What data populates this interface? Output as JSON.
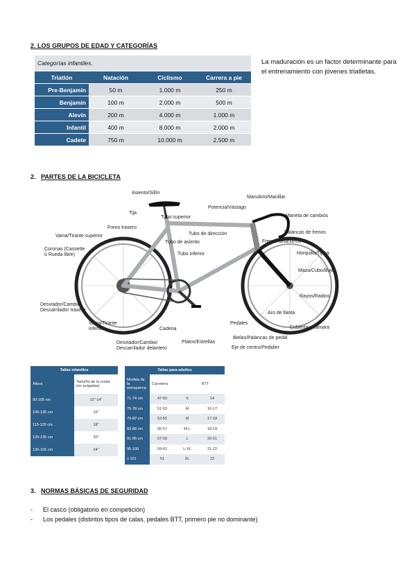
{
  "section1": {
    "heading": "2. LOS GRUPOS DE EDAD Y CATEGORÍAS"
  },
  "table1": {
    "caption": "Categorías infantiles.",
    "header": [
      "Triatlón",
      "Natación",
      "Ciclismo",
      "Carrera a pie"
    ],
    "rows": [
      [
        "Pre-Benjamín",
        "50 m",
        "1.000 m",
        "250 m"
      ],
      [
        "Benjamín",
        "100 m",
        "2.000 m",
        "500 m"
      ],
      [
        "Alevín",
        "200 m",
        "4.000 m",
        "1.000 m"
      ],
      [
        "Infantil",
        "400 m",
        "8.000 m",
        "2.000 m"
      ],
      [
        "Cadete",
        "750 m",
        "10.000 m",
        "2.500 m"
      ]
    ]
  },
  "note": "La maduración es un factor determinante para el entrenamiento con jóvenes triatletas.",
  "section2": {
    "number": "2.",
    "title": "PARTES DE LA BICICLETA"
  },
  "bike_labels": [
    "Asiento/Sillín",
    "Tija",
    "Tubo superior",
    "Freno trasero",
    "Vaina/Tirante superior",
    "Coronas (Cassette o Rueda libre)",
    "Desviador/Cambio/ Descarrilador trasero",
    "Vaina/Tirante inferior",
    "Cadena",
    "Desviador/Cambio/ Descarrilador delantero",
    "Platos/Estrellas",
    "Bielas/Palancas de pedal",
    "Eje de centro/Pedalier",
    "Pedales",
    "Aro de llanta",
    "Cubierta y cámara",
    "Rayos/Radios",
    "Maza/Cubo/Buje",
    "Horquilla/Tijera",
    "Frenos delanteros",
    "Palancas de frenos",
    "Maneta de cambios",
    "Manubrio/Manillar",
    "Potencia/Vástago",
    "Tubo de dirección",
    "Tubo de asiento",
    "Tubo inferior"
  ],
  "table2": {
    "title": "Tallas infantiles",
    "header": [
      "Altura",
      "Tamaño de la rueda (en pulgadas)"
    ],
    "rows": [
      [
        "90-105 cm",
        "12\"-14\""
      ],
      [
        "100-135 cm",
        "16\""
      ],
      [
        "115-125 cm",
        "18\""
      ],
      [
        "120-135 cm",
        "20\""
      ],
      [
        "130-155 cm",
        "24\""
      ]
    ]
  },
  "table3": {
    "title": "Tallas para adultos",
    "header": [
      "Medida de la entrepierna",
      "Carretera",
      "BTT"
    ],
    "rows": [
      [
        "71-74 cm",
        "47-50",
        "S",
        "14"
      ],
      [
        "75-78 cm",
        "51-53",
        "M",
        "16-17"
      ],
      [
        "79-82 cm",
        "53-55",
        "M",
        "17-18"
      ],
      [
        "83-86 cm",
        "56-57",
        "M-L",
        "18-19"
      ],
      [
        "91-95 cm",
        "57-58",
        "L",
        "20-21"
      ],
      [
        "95-100",
        "59-61",
        "L-XL",
        "21-22"
      ],
      [
        "≥ 101",
        "61",
        "XL",
        "22"
      ]
    ]
  },
  "section3": {
    "number": "3.",
    "title": "NORMAS BÁSICAS DE SEGURIDAD"
  },
  "list": [
    "El casco (obligatorio en competición)",
    "Los pedales (distintos tipos de calas, pedales BTT, primero pie no dominante)"
  ]
}
